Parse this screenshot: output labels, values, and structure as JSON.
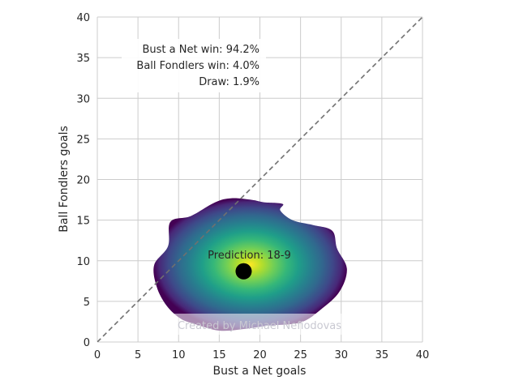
{
  "chart_data": {
    "type": "heatmap",
    "title": "",
    "xlabel": "Bust a Net goals",
    "ylabel": "Ball Fondlers goals",
    "xlim": [
      0,
      40
    ],
    "ylim": [
      0,
      40
    ],
    "xticks": [
      "0",
      "5",
      "10",
      "15",
      "20",
      "25",
      "30",
      "35",
      "40"
    ],
    "yticks": [
      "0",
      "5",
      "10",
      "15",
      "20",
      "25",
      "30",
      "35",
      "40"
    ],
    "grid": true,
    "diagonal_line": {
      "from": [
        0,
        0
      ],
      "to": [
        40,
        40
      ],
      "style": "dashed",
      "color": "#707070"
    },
    "density": {
      "colormap": "viridis",
      "center": [
        18,
        8.7
      ],
      "boundary": [
        [
          10.2,
          2.9
        ],
        [
          12.0,
          2.2
        ],
        [
          15.0,
          1.4
        ],
        [
          18.0,
          1.6
        ],
        [
          21.0,
          2.0
        ],
        [
          25.0,
          2.4
        ],
        [
          27.5,
          4.0
        ],
        [
          29.8,
          6.2
        ],
        [
          30.7,
          9.0
        ],
        [
          29.5,
          11.5
        ],
        [
          28.9,
          13.7
        ],
        [
          26.5,
          14.4
        ],
        [
          24.0,
          15.0
        ],
        [
          22.5,
          16.2
        ],
        [
          22.8,
          17.0
        ],
        [
          20.5,
          17.2
        ],
        [
          19.0,
          17.5
        ],
        [
          16.5,
          17.7
        ],
        [
          14.5,
          17.2
        ],
        [
          11.5,
          15.5
        ],
        [
          9.0,
          14.8
        ],
        [
          8.7,
          11.8
        ],
        [
          7.0,
          9.5
        ],
        [
          7.3,
          6.8
        ],
        [
          8.5,
          4.5
        ]
      ]
    },
    "prediction_point": {
      "x": 18,
      "y": 8.7,
      "label": "Prediction: 18-9",
      "color": "#000000"
    },
    "annotations": [
      "Bust a Net win: 94.2%",
      "Ball Fondlers win: 4.0%",
      "Draw: 1.9%"
    ],
    "watermark": "Created by Michael Nefiodovas",
    "colors": {
      "grid": "#cccccc",
      "diagonal": "#707070",
      "point": "#000000"
    }
  }
}
